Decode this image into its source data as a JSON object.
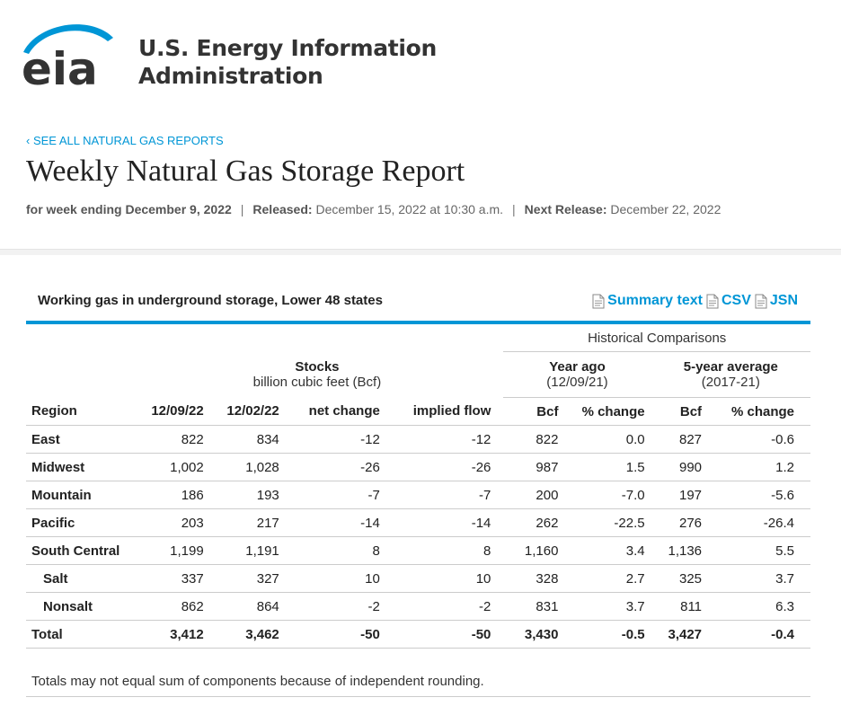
{
  "header": {
    "logo_text": "eia",
    "org_line1": "U.S. Energy Information",
    "org_line2": "Administration",
    "back_link": "‹ SEE ALL NATURAL GAS REPORTS",
    "title": "Weekly Natural Gas Storage Report",
    "week_label": "for week ending December 9, 2022",
    "released_label": "Released:",
    "released_value": "December 15, 2022 at 10:30 a.m.",
    "next_label": "Next Release:",
    "next_value": "December 22, 2022",
    "separator": "|"
  },
  "section": {
    "title": "Working gas in underground storage, Lower 48 states",
    "links": [
      "Summary text",
      "CSV",
      "JSN"
    ],
    "icon": "document-icon",
    "accent": "#0096d6"
  },
  "table": {
    "historical_label": "Historical Comparisons",
    "stocks_label": "Stocks",
    "stocks_unit": "billion cubic feet (Bcf)",
    "year_ago_label": "Year ago",
    "year_ago_date": "(12/09/21)",
    "five_year_label": "5-year average",
    "five_year_range": "(2017-21)",
    "columns": [
      "Region",
      "12/09/22",
      "12/02/22",
      "net change",
      "implied flow",
      "Bcf",
      "% change",
      "Bcf",
      "% change"
    ],
    "rows": [
      {
        "region": "East",
        "values": [
          "822",
          "834",
          "-12",
          "-12",
          "822",
          "0.0",
          "827",
          "-0.6"
        ]
      },
      {
        "region": "Midwest",
        "values": [
          "1,002",
          "1,028",
          "-26",
          "-26",
          "987",
          "1.5",
          "990",
          "1.2"
        ]
      },
      {
        "region": "Mountain",
        "values": [
          "186",
          "193",
          "-7",
          "-7",
          "200",
          "-7.0",
          "197",
          "-5.6"
        ]
      },
      {
        "region": "Pacific",
        "values": [
          "203",
          "217",
          "-14",
          "-14",
          "262",
          "-22.5",
          "276",
          "-26.4"
        ]
      },
      {
        "region": "South Central",
        "values": [
          "1,199",
          "1,191",
          "8",
          "8",
          "1,160",
          "3.4",
          "1,136",
          "5.5"
        ]
      },
      {
        "region": "Salt",
        "values": [
          "337",
          "327",
          "10",
          "10",
          "328",
          "2.7",
          "325",
          "3.7"
        ]
      },
      {
        "region": "Nonsalt",
        "values": [
          "862",
          "864",
          "-2",
          "-2",
          "831",
          "3.7",
          "811",
          "6.3"
        ]
      },
      {
        "region": "Total",
        "values": [
          "3,412",
          "3,462",
          "-50",
          "-50",
          "3,430",
          "-0.5",
          "3,427",
          "-0.4"
        ]
      }
    ]
  },
  "footnote": "Totals may not equal sum of components because of independent rounding."
}
